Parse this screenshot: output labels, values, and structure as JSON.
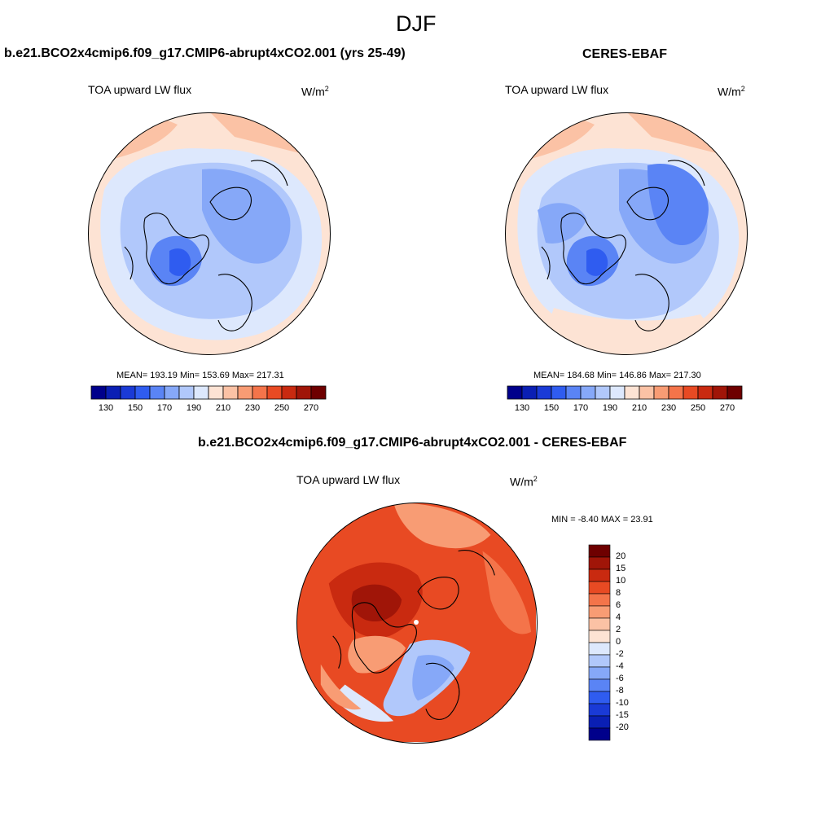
{
  "figure": {
    "title": "DJF",
    "units_base": "W/m",
    "units_exp": "2"
  },
  "panels": [
    {
      "id": "model",
      "title": "b.e21.BCO2x4cmip6.f09_g17.CMIP6-abrupt4xCO2.001 (yrs 25-49)",
      "variable": "TOA upward LW flux",
      "stats": "MEAN= 193.19  Min= 153.69  Max= 217.31",
      "mean": 193.19,
      "min": 153.69,
      "max": 217.31
    },
    {
      "id": "obs",
      "title": "CERES-EBAF",
      "variable": "TOA upward LW flux",
      "stats": "MEAN= 184.68  Min= 146.86  Max= 217.30",
      "mean": 184.68,
      "min": 146.86,
      "max": 217.3
    },
    {
      "id": "diff",
      "title": "b.e21.BCO2x4cmip6.f09_g17.CMIP6-abrupt4xCO2.001 - CERES-EBAF",
      "variable": "TOA upward LW flux",
      "stats": "MIN =  -8.40 MAX =  23.91",
      "min": -8.4,
      "max": 23.91
    }
  ],
  "colorbar_abs": {
    "levels": [
      130,
      140,
      150,
      160,
      170,
      180,
      190,
      200,
      210,
      220,
      230,
      240,
      250,
      260,
      270
    ],
    "tick_labels": [
      "130",
      "150",
      "170",
      "190",
      "210",
      "230",
      "250",
      "270"
    ],
    "colors": [
      "#00008b",
      "#0a1fb4",
      "#1a3ad6",
      "#2f5cf0",
      "#5a84f5",
      "#86a8f8",
      "#b1c8fb",
      "#dde8fd",
      "#fde3d4",
      "#fbc2a5",
      "#f89c74",
      "#f4744a",
      "#e84a23",
      "#c92a10",
      "#a01508",
      "#6e0000"
    ]
  },
  "colorbar_diff": {
    "levels": [
      -20,
      -15,
      -10,
      -8,
      -6,
      -4,
      -2,
      0,
      2,
      4,
      6,
      8,
      10,
      15,
      20
    ],
    "tick_labels": [
      "20",
      "15",
      "10",
      "8",
      "6",
      "4",
      "2",
      "0",
      "-2",
      "-4",
      "-6",
      "-8",
      "-10",
      "-15",
      "-20"
    ],
    "colors_top_to_bottom": [
      "#6e0000",
      "#a01508",
      "#c92a10",
      "#e84a23",
      "#f4744a",
      "#f89c74",
      "#fbc2a5",
      "#fde3d4",
      "#dde8fd",
      "#b1c8fb",
      "#86a8f8",
      "#5a84f5",
      "#2f5cf0",
      "#1a3ad6",
      "#0a1fb4",
      "#00008b"
    ]
  },
  "chart_data": [
    {
      "type": "heatmap",
      "title": "b.e21.BCO2x4cmip6.f09_g17.CMIP6-abrupt4xCO2.001 (yrs 25-49)",
      "variable": "TOA upward LW flux",
      "projection": "north-polar-stereographic",
      "mean": 193.19,
      "min": 153.69,
      "max": 217.31,
      "color_levels": [
        130,
        140,
        150,
        160,
        170,
        180,
        190,
        200,
        210,
        220,
        230,
        240,
        250,
        260,
        270
      ]
    },
    {
      "type": "heatmap",
      "title": "CERES-EBAF",
      "variable": "TOA upward LW flux",
      "projection": "north-polar-stereographic",
      "mean": 184.68,
      "min": 146.86,
      "max": 217.3,
      "color_levels": [
        130,
        140,
        150,
        160,
        170,
        180,
        190,
        200,
        210,
        220,
        230,
        240,
        250,
        260,
        270
      ]
    },
    {
      "type": "heatmap",
      "title": "b.e21.BCO2x4cmip6.f09_g17.CMIP6-abrupt4xCO2.001 - CERES-EBAF",
      "variable": "TOA upward LW flux",
      "projection": "north-polar-stereographic",
      "min": -8.4,
      "max": 23.91,
      "color_levels": [
        -20,
        -15,
        -10,
        -8,
        -6,
        -4,
        -2,
        0,
        2,
        4,
        6,
        8,
        10,
        15,
        20
      ]
    }
  ]
}
